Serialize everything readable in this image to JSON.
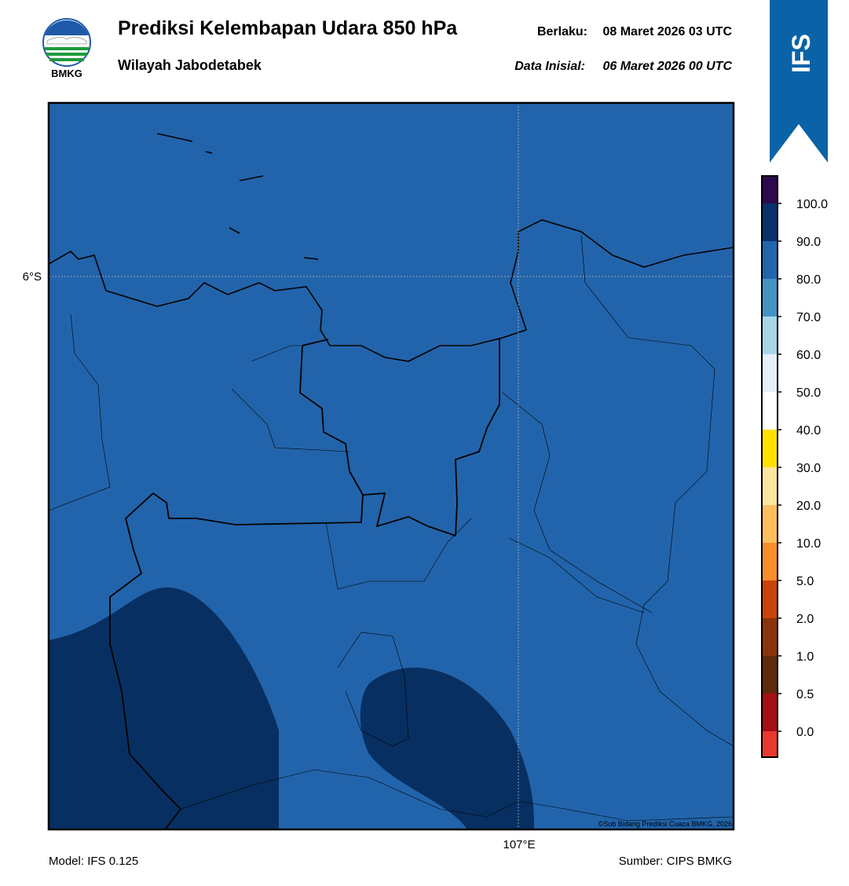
{
  "header": {
    "title": "Prediksi Kelembapan Udara 850 hPa",
    "subtitle": "Wilayah Jabodetabek",
    "valid_label": "Berlaku:",
    "valid_date": "08 Maret 2026 03 UTC",
    "initial_label": "Data Inisial:",
    "initial_date": "06 Maret 2026 00 UTC",
    "logo_text": "BMKG",
    "badge": "IFS"
  },
  "map": {
    "lat_label": "6°S",
    "lon_label": "107°E",
    "credit": "©Sub Bidang Prediksi Cuaca BMKG, 2026"
  },
  "colorbar": {
    "ticks": [
      "0.0",
      "0.5",
      "1.0",
      "2.0",
      "5.0",
      "10.0",
      "20.0",
      "30.0",
      "40.0",
      "50.0",
      "60.0",
      "70.0",
      "80.0",
      "90.0",
      "100.0"
    ],
    "colors": [
      "#e8392f",
      "#a50f15",
      "#5e2a0e",
      "#8a340c",
      "#c9440a",
      "#f98e2b",
      "#fdbf5e",
      "#fde7a0",
      "#ffe100",
      "#ffffff",
      "#e5f0f8",
      "#a8d5e8",
      "#4393c3",
      "#2166ac",
      "#08306b",
      "#2d0a4e"
    ]
  },
  "footer": {
    "model": "Model: IFS 0.125",
    "source": "Sumber: CIPS BMKG"
  }
}
